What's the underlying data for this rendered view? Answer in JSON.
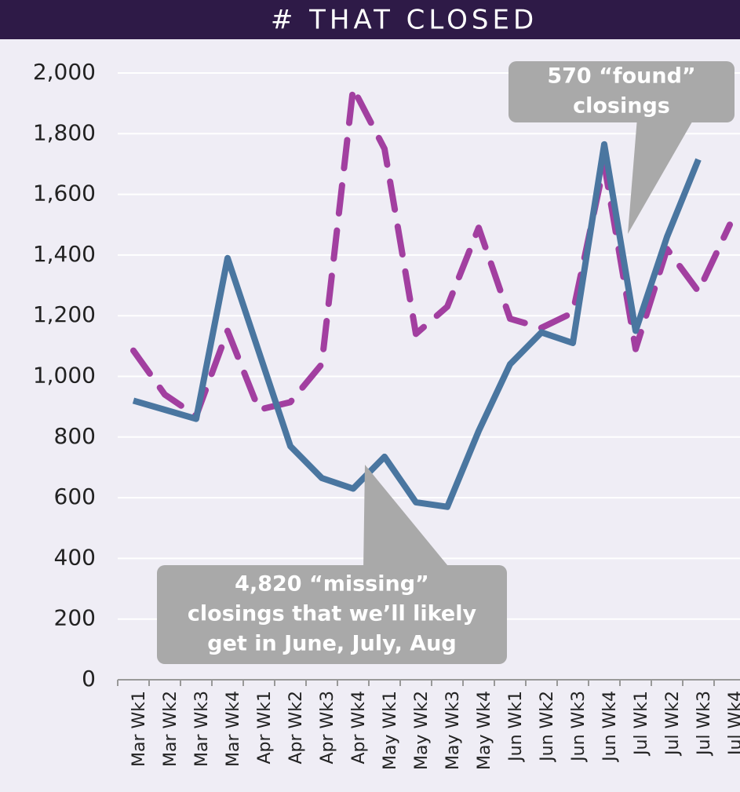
{
  "chart_data": {
    "type": "line",
    "title": "# THAT CLOSED",
    "categories": [
      "Mar Wk1",
      "Mar Wk2",
      "Mar Wk3",
      "Mar Wk4",
      "Apr Wk1",
      "Apr Wk2",
      "Apr Wk3",
      "Apr Wk4",
      "May Wk1",
      "May Wk2",
      "May Wk3",
      "May Wk4",
      "Jun Wk1",
      "Jun Wk2",
      "Jun Wk3",
      "Jun Wk4",
      "Jul Wk1",
      "Jul Wk2",
      "Jul Wk3",
      "Jul Wk4"
    ],
    "series": [
      {
        "color": "#a23fa0",
        "dashed": true,
        "values": [
          1085,
          940,
          870,
          1150,
          890,
          915,
          1040,
          1950,
          1750,
          1140,
          1230,
          1490,
          1190,
          1160,
          1210,
          1700,
          1090,
          1420,
          1280,
          1500
        ]
      },
      {
        "color": "#4a76a0",
        "dashed": false,
        "values": [
          920,
          890,
          860,
          1390,
          1080,
          770,
          665,
          630,
          735,
          585,
          570,
          820,
          1040,
          1145,
          1110,
          1765,
          1150,
          1460,
          1715,
          null
        ]
      }
    ],
    "ylim": [
      0,
      2000
    ],
    "yticks": [
      0,
      200,
      400,
      600,
      800,
      {
        "value": 1000,
        "label": "1,000"
      },
      {
        "value": 1200,
        "label": "1,200"
      },
      {
        "value": 1400,
        "label": "1,400"
      },
      {
        "value": 1600,
        "label": "1,600"
      },
      {
        "value": 1800,
        "label": "1,800"
      },
      {
        "value": 2000,
        "label": "2,000"
      }
    ],
    "grid": true,
    "annotations": [
      {
        "lines": [
          "570 “found”",
          "closings"
        ]
      },
      {
        "lines": [
          "4,820 “missing”",
          "closings that we’ll likely",
          "get in June, July, Aug"
        ]
      }
    ]
  }
}
